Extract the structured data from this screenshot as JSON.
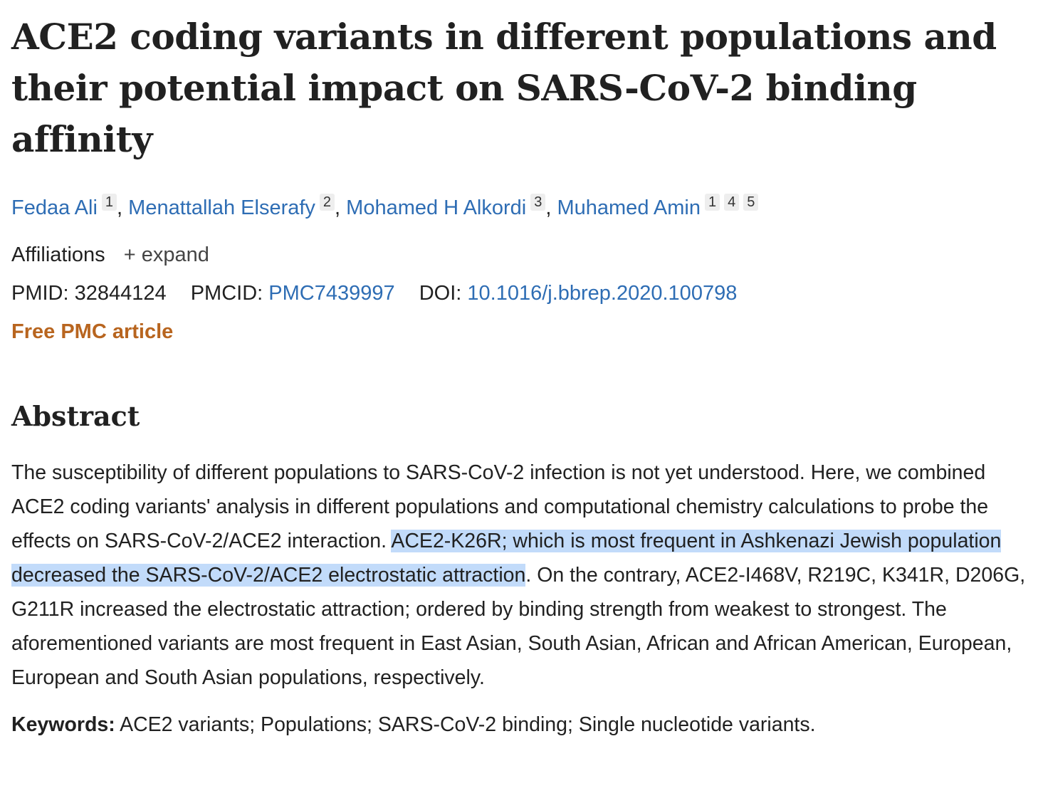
{
  "title": "ACE2 coding variants in different populations and their potential impact on SARS-CoV-2 binding affinity",
  "authors": [
    {
      "name": "Fedaa Ali",
      "affs": [
        "1"
      ]
    },
    {
      "name": "Menattallah Elserafy",
      "affs": [
        "2"
      ]
    },
    {
      "name": "Mohamed H Alkordi",
      "affs": [
        "3"
      ]
    },
    {
      "name": "Muhamed Amin",
      "affs": [
        "1",
        "4",
        "5"
      ]
    }
  ],
  "affiliations": {
    "label": "Affiliations",
    "expand": "expand",
    "expand_icon": "plus-icon"
  },
  "ids": {
    "pmid_label": "PMID:",
    "pmid": "32844124",
    "pmcid_label": "PMCID:",
    "pmcid": "PMC7439997",
    "doi_label": "DOI:",
    "doi": "10.1016/j.bbrep.2020.100798"
  },
  "free_label": "Free PMC article",
  "abstract": {
    "heading": "Abstract",
    "before": "The susceptibility of different populations to SARS-CoV-2 infection is not yet understood. Here, we combined ACE2 coding variants' analysis in different populations and computational chemistry calculations to probe the effects on SARS-CoV-2/ACE2 interaction. ",
    "highlight": "ACE2-K26R; which is most frequent in Ashkenazi Jewish population decreased the SARS-CoV-2/ACE2 electrostatic attraction",
    "after": ". On the contrary, ACE2-I468V, R219C, K341R, D206G, G211R increased the electrostatic attraction; ordered by binding strength from weakest to strongest. The aforementioned variants are most frequent in East Asian, South Asian, African and African American, European, European and South Asian populations, respectively."
  },
  "keywords": {
    "label": "Keywords:",
    "text": "ACE2 variants; Populations; SARS-CoV-2 binding; Single nucleotide variants."
  },
  "colors": {
    "link": "#2e6db4",
    "free": "#b8651f",
    "highlight": "#c2dbfa"
  }
}
